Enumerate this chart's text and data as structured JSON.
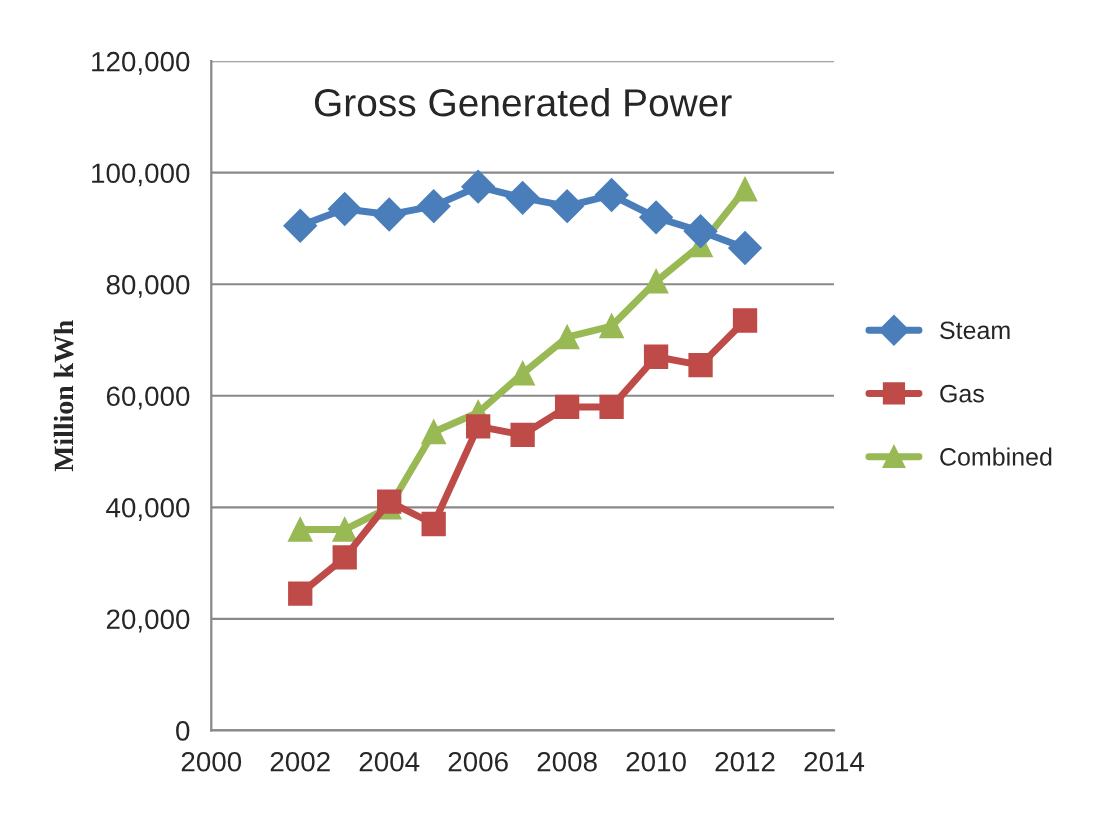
{
  "chart_data": {
    "type": "line",
    "title": "Gross Generated Power",
    "ylabel": "Million kWh",
    "x": [
      2002,
      2003,
      2004,
      2005,
      2006,
      2007,
      2008,
      2009,
      2010,
      2011,
      2012
    ],
    "series": [
      {
        "name": "Steam",
        "color": "#4a7ebb",
        "marker": "diamond",
        "values": [
          90500,
          93500,
          92500,
          94000,
          97500,
          95500,
          94000,
          96000,
          92000,
          89500,
          86500
        ]
      },
      {
        "name": "Gas",
        "color": "#be4b48",
        "marker": "square",
        "values": [
          24500,
          31000,
          41000,
          37000,
          54500,
          53000,
          58000,
          58000,
          67000,
          65500,
          73500
        ]
      },
      {
        "name": "Combined",
        "color": "#98b954",
        "marker": "triangle",
        "values": [
          36000,
          36000,
          40000,
          53500,
          57000,
          64000,
          70500,
          72500,
          80500,
          87000,
          97000
        ]
      }
    ],
    "xlim": [
      2000,
      2014
    ],
    "xticks": [
      2000,
      2002,
      2004,
      2006,
      2008,
      2010,
      2012,
      2014
    ],
    "ylim": [
      0,
      120000
    ],
    "yticks": [
      {
        "value": 0,
        "label": "0"
      },
      {
        "value": 20000,
        "label": "20,000"
      },
      {
        "value": 40000,
        "label": "40,000"
      },
      {
        "value": 60000,
        "label": "60,000"
      },
      {
        "value": 80000,
        "label": "80,000"
      },
      {
        "value": 100000,
        "label": "100,000"
      },
      {
        "value": 120000,
        "label": "120,000"
      }
    ],
    "grid": "y",
    "legend": "right",
    "line_style": "solid"
  }
}
